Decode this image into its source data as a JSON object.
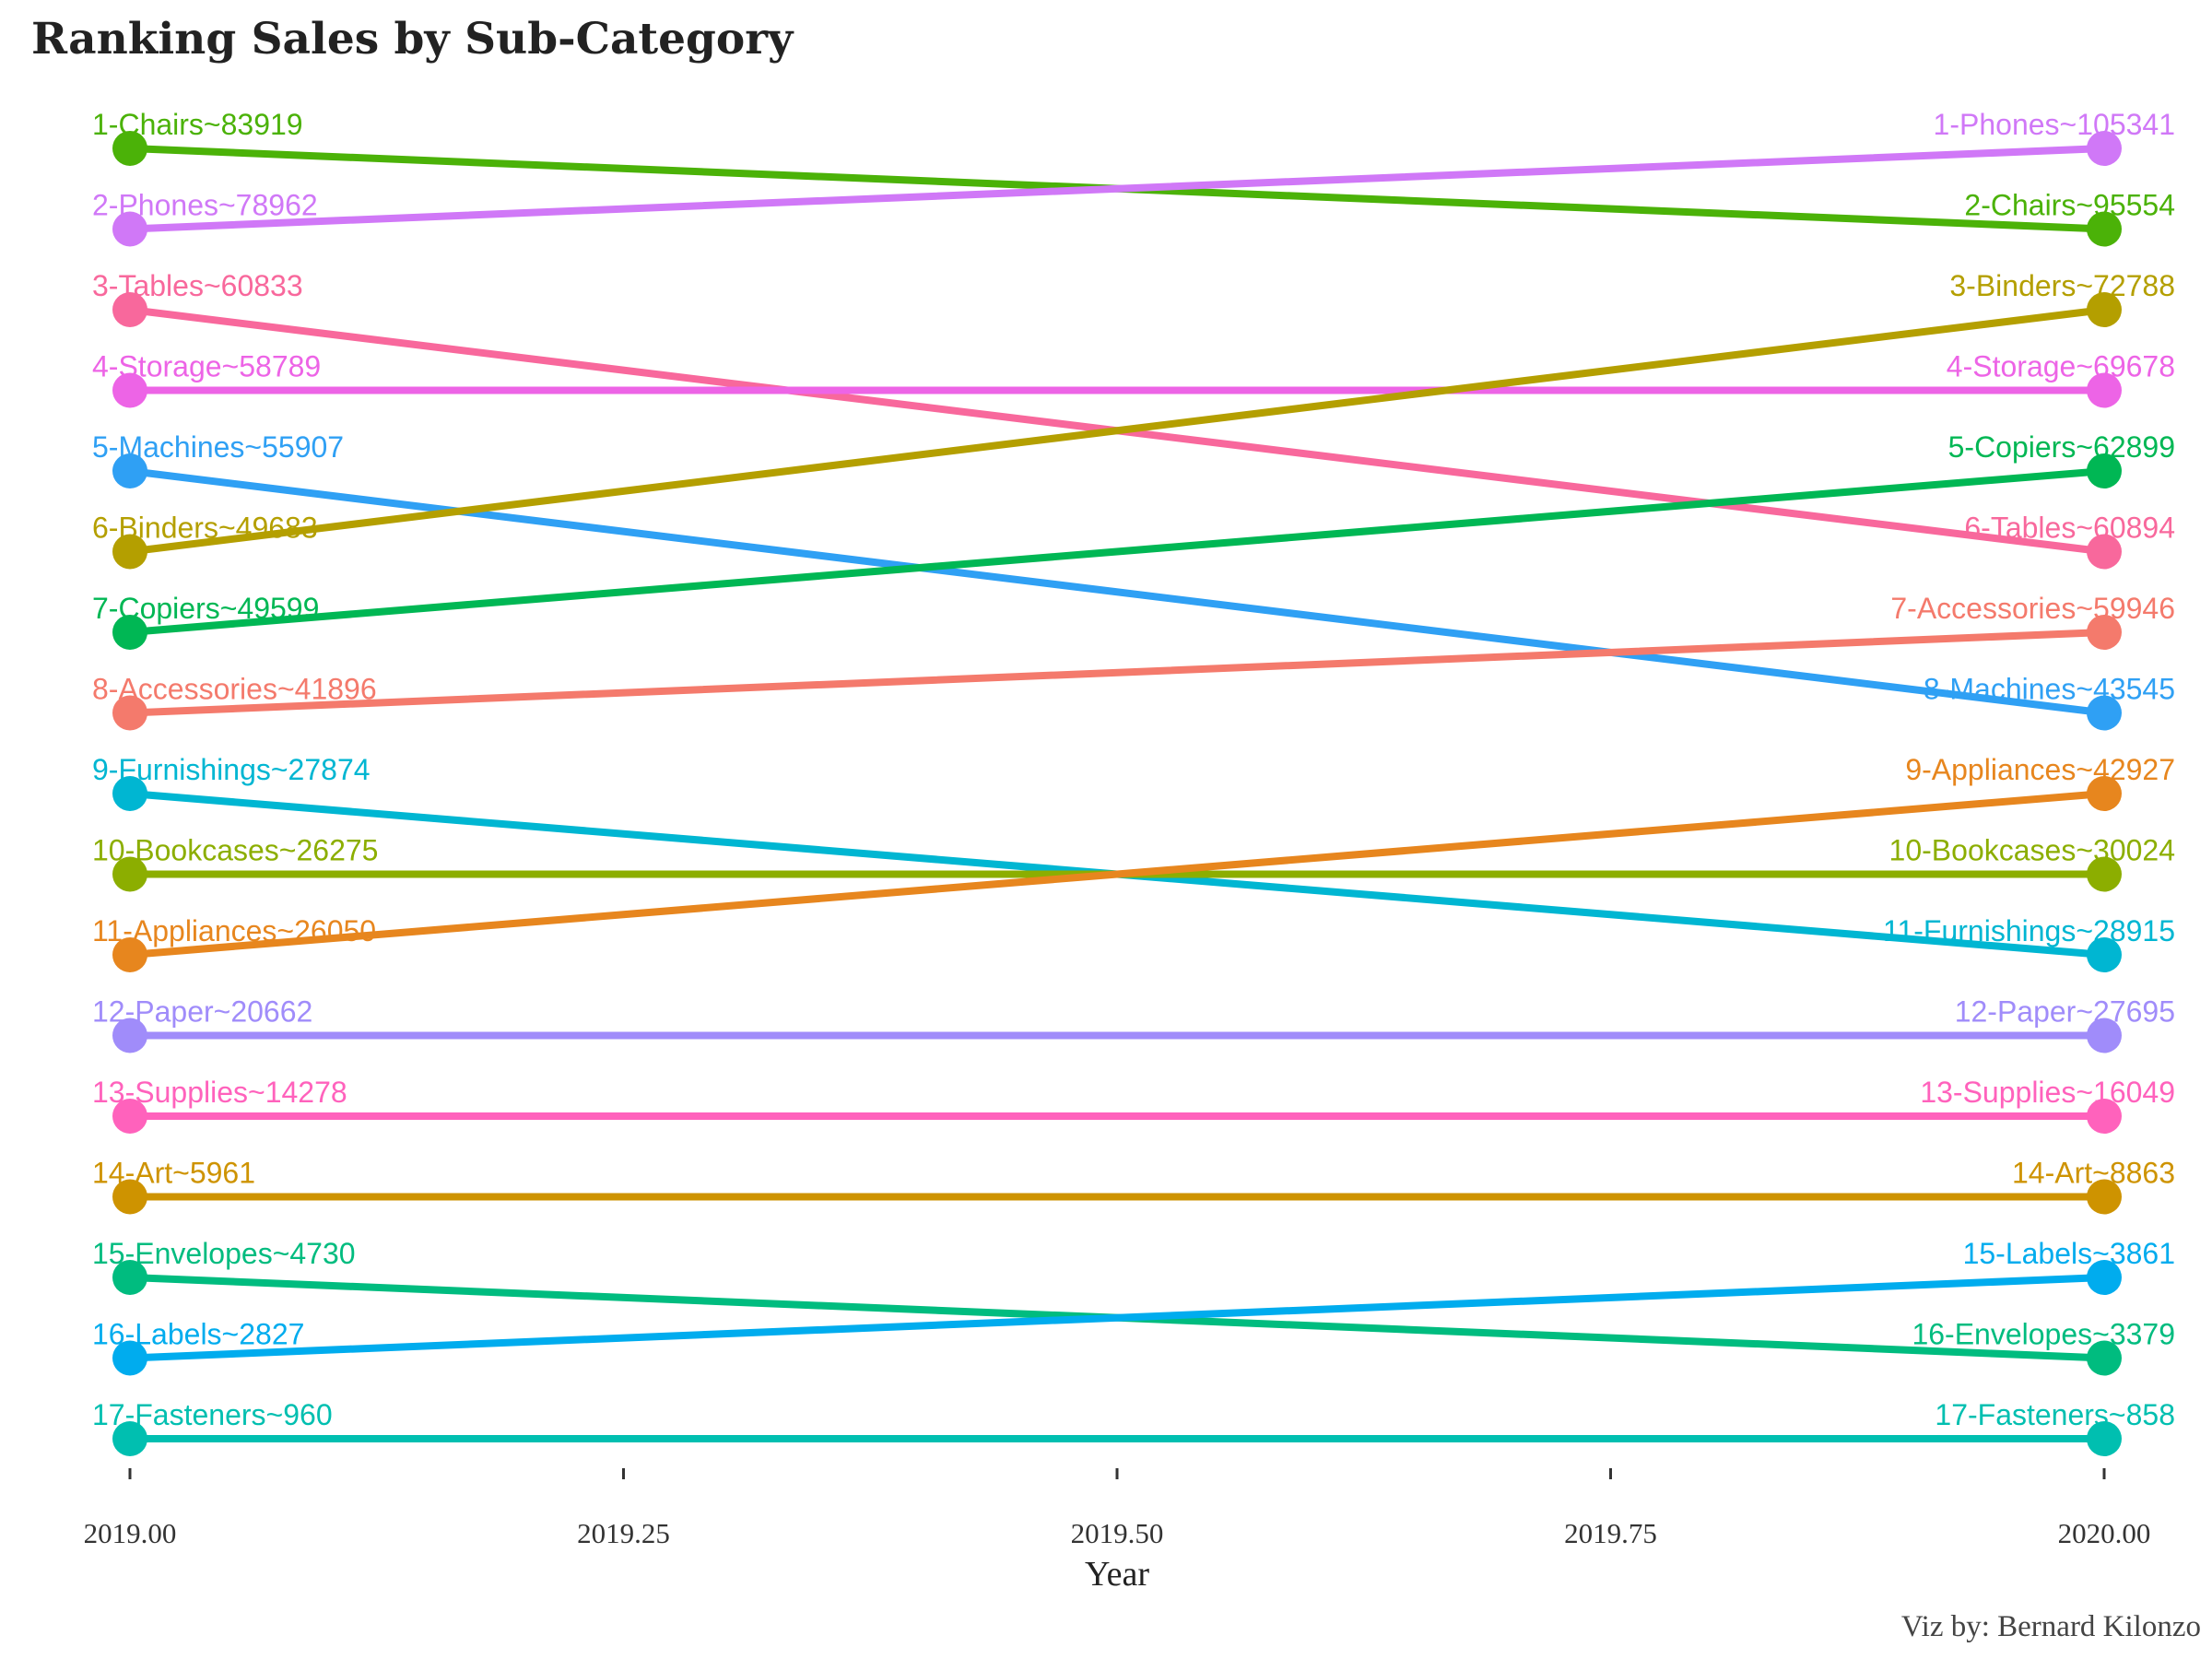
{
  "chart_data": {
    "type": "line",
    "title": "Ranking Sales by Sub-Category",
    "xlabel": "Year",
    "ylabel": "",
    "caption": "Viz by: Bernard Kilonzo",
    "x": [
      2019,
      2020
    ],
    "xlim": [
      2019,
      2020
    ],
    "xticks": [
      "2019.00",
      "2019.25",
      "2019.50",
      "2019.75",
      "2020.00"
    ],
    "y_reversed": true,
    "grid": false,
    "legend": "none",
    "series": [
      {
        "name": "Chairs",
        "color": "#4BB208",
        "ranks": [
          1,
          2
        ],
        "sales": [
          83919,
          95554
        ],
        "labels": [
          "1-Chairs~83919",
          "2-Chairs~95554"
        ]
      },
      {
        "name": "Phones",
        "color": "#D078F7",
        "ranks": [
          2,
          1
        ],
        "sales": [
          78962,
          105341
        ],
        "labels": [
          "2-Phones~78962",
          "1-Phones~105341"
        ]
      },
      {
        "name": "Tables",
        "color": "#F8689C",
        "ranks": [
          3,
          6
        ],
        "sales": [
          60833,
          60894
        ],
        "labels": [
          "3-Tables~60833",
          "6-Tables~60894"
        ]
      },
      {
        "name": "Storage",
        "color": "#ED64E6",
        "ranks": [
          4,
          4
        ],
        "sales": [
          58789,
          69678
        ],
        "labels": [
          "4-Storage~58789",
          "4-Storage~69678"
        ]
      },
      {
        "name": "Machines",
        "color": "#2FA0F4",
        "ranks": [
          5,
          8
        ],
        "sales": [
          55907,
          43545
        ],
        "labels": [
          "5-Machines~55907",
          "8-Machines~43545"
        ]
      },
      {
        "name": "Binders",
        "color": "#B49F00",
        "ranks": [
          6,
          3
        ],
        "sales": [
          49683,
          72788
        ],
        "labels": [
          "6-Binders~49683",
          "3-Binders~72788"
        ]
      },
      {
        "name": "Copiers",
        "color": "#00B754",
        "ranks": [
          7,
          5
        ],
        "sales": [
          49599,
          62899
        ],
        "labels": [
          "7-Copiers~49599",
          "5-Copiers~62899"
        ]
      },
      {
        "name": "Accessories",
        "color": "#F47A6C",
        "ranks": [
          8,
          7
        ],
        "sales": [
          41896,
          59946
        ],
        "labels": [
          "8-Accessories~41896",
          "7-Accessories~59946"
        ]
      },
      {
        "name": "Furnishings",
        "color": "#00B6D2",
        "ranks": [
          9,
          11
        ],
        "sales": [
          27874,
          28915
        ],
        "labels": [
          "9-Furnishings~27874",
          "11-Furnishings~28915"
        ]
      },
      {
        "name": "Bookcases",
        "color": "#8CAE00",
        "ranks": [
          10,
          10
        ],
        "sales": [
          26275,
          30024
        ],
        "labels": [
          "10-Bookcases~26275",
          "10-Bookcases~30024"
        ]
      },
      {
        "name": "Appliances",
        "color": "#E7861E",
        "ranks": [
          11,
          9
        ],
        "sales": [
          26050,
          42927
        ],
        "labels": [
          "11-Appliances~26050",
          "9-Appliances~42927"
        ]
      },
      {
        "name": "Paper",
        "color": "#A08CFA",
        "ranks": [
          12,
          12
        ],
        "sales": [
          20662,
          27695
        ],
        "labels": [
          "12-Paper~20662",
          "12-Paper~27695"
        ]
      },
      {
        "name": "Supplies",
        "color": "#FF62BC",
        "ranks": [
          13,
          13
        ],
        "sales": [
          14278,
          16049
        ],
        "labels": [
          "13-Supplies~14278",
          "13-Supplies~16049"
        ]
      },
      {
        "name": "Art",
        "color": "#CE9300",
        "ranks": [
          14,
          14
        ],
        "sales": [
          5961,
          8863
        ],
        "labels": [
          "14-Art~5961",
          "14-Art~8863"
        ]
      },
      {
        "name": "Envelopes",
        "color": "#00BC7F",
        "ranks": [
          15,
          16
        ],
        "sales": [
          4730,
          3379
        ],
        "labels": [
          "15-Envelopes~4730",
          "16-Envelopes~3379"
        ]
      },
      {
        "name": "Labels",
        "color": "#00ACEE",
        "ranks": [
          16,
          15
        ],
        "sales": [
          2827,
          3861
        ],
        "labels": [
          "16-Labels~2827",
          "15-Labels~3861"
        ]
      },
      {
        "name": "Fasteners",
        "color": "#00BFB0",
        "ranks": [
          17,
          17
        ],
        "sales": [
          960,
          858
        ],
        "labels": [
          "17-Fasteners~960",
          "17-Fasteners~858"
        ]
      }
    ]
  }
}
